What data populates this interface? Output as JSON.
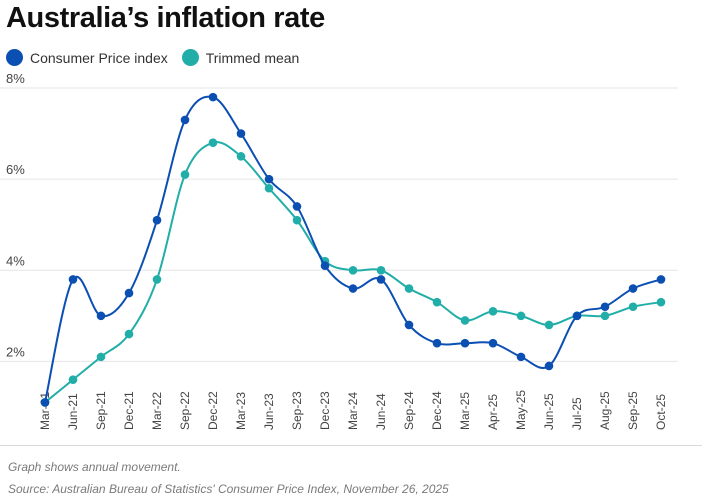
{
  "header": {
    "title": "Australia’s inflation rate"
  },
  "footer": {
    "note": "Graph shows annual movement.",
    "source": "Source:  Australian Bureau of Statistics' Consumer Price Index, November 26, 2025"
  },
  "colors": {
    "cpi": "#0b4fb3",
    "trimmed": "#22aea8",
    "grid": "#e6e6e6",
    "axis_text": "#444444"
  },
  "chart_data": {
    "type": "line",
    "title": "Australia’s inflation rate",
    "xlabel": "",
    "ylabel": "",
    "ylim": [
      1,
      8
    ],
    "y_ticks": [
      2,
      4,
      6,
      8
    ],
    "y_tick_labels": [
      "2%",
      "4%",
      "6%",
      "8%"
    ],
    "grid": true,
    "legend": "top-left",
    "categories": [
      "Mar-21",
      "Jun-21",
      "Sep-21",
      "Dec-21",
      "Mar-22",
      "Sep-22",
      "Dec-22",
      "Mar-23",
      "Jun-23",
      "Sep-23",
      "Dec-23",
      "Mar-24",
      "Jun-24",
      "Sep-24",
      "Dec-24",
      "Mar-25",
      "Apr-25",
      "May-25",
      "Jun-25",
      "Jul-25",
      "Aug-25",
      "Sep-25",
      "Oct-25"
    ],
    "series": [
      {
        "name": "Consumer Price index",
        "color": "#0b4fb3",
        "values": [
          1.1,
          3.8,
          3.0,
          3.5,
          5.1,
          7.3,
          7.8,
          7.0,
          6.0,
          5.4,
          4.1,
          3.6,
          3.8,
          2.8,
          2.4,
          2.4,
          2.4,
          2.1,
          1.9,
          3.0,
          3.2,
          3.6,
          3.8
        ]
      },
      {
        "name": "Trimmed mean",
        "color": "#22aea8",
        "values": [
          1.1,
          1.6,
          2.1,
          2.6,
          3.8,
          6.1,
          6.8,
          6.5,
          5.8,
          5.1,
          4.2,
          4.0,
          4.0,
          3.6,
          3.3,
          2.9,
          3.1,
          3.0,
          2.8,
          3.0,
          3.0,
          3.2,
          3.3
        ]
      }
    ]
  }
}
